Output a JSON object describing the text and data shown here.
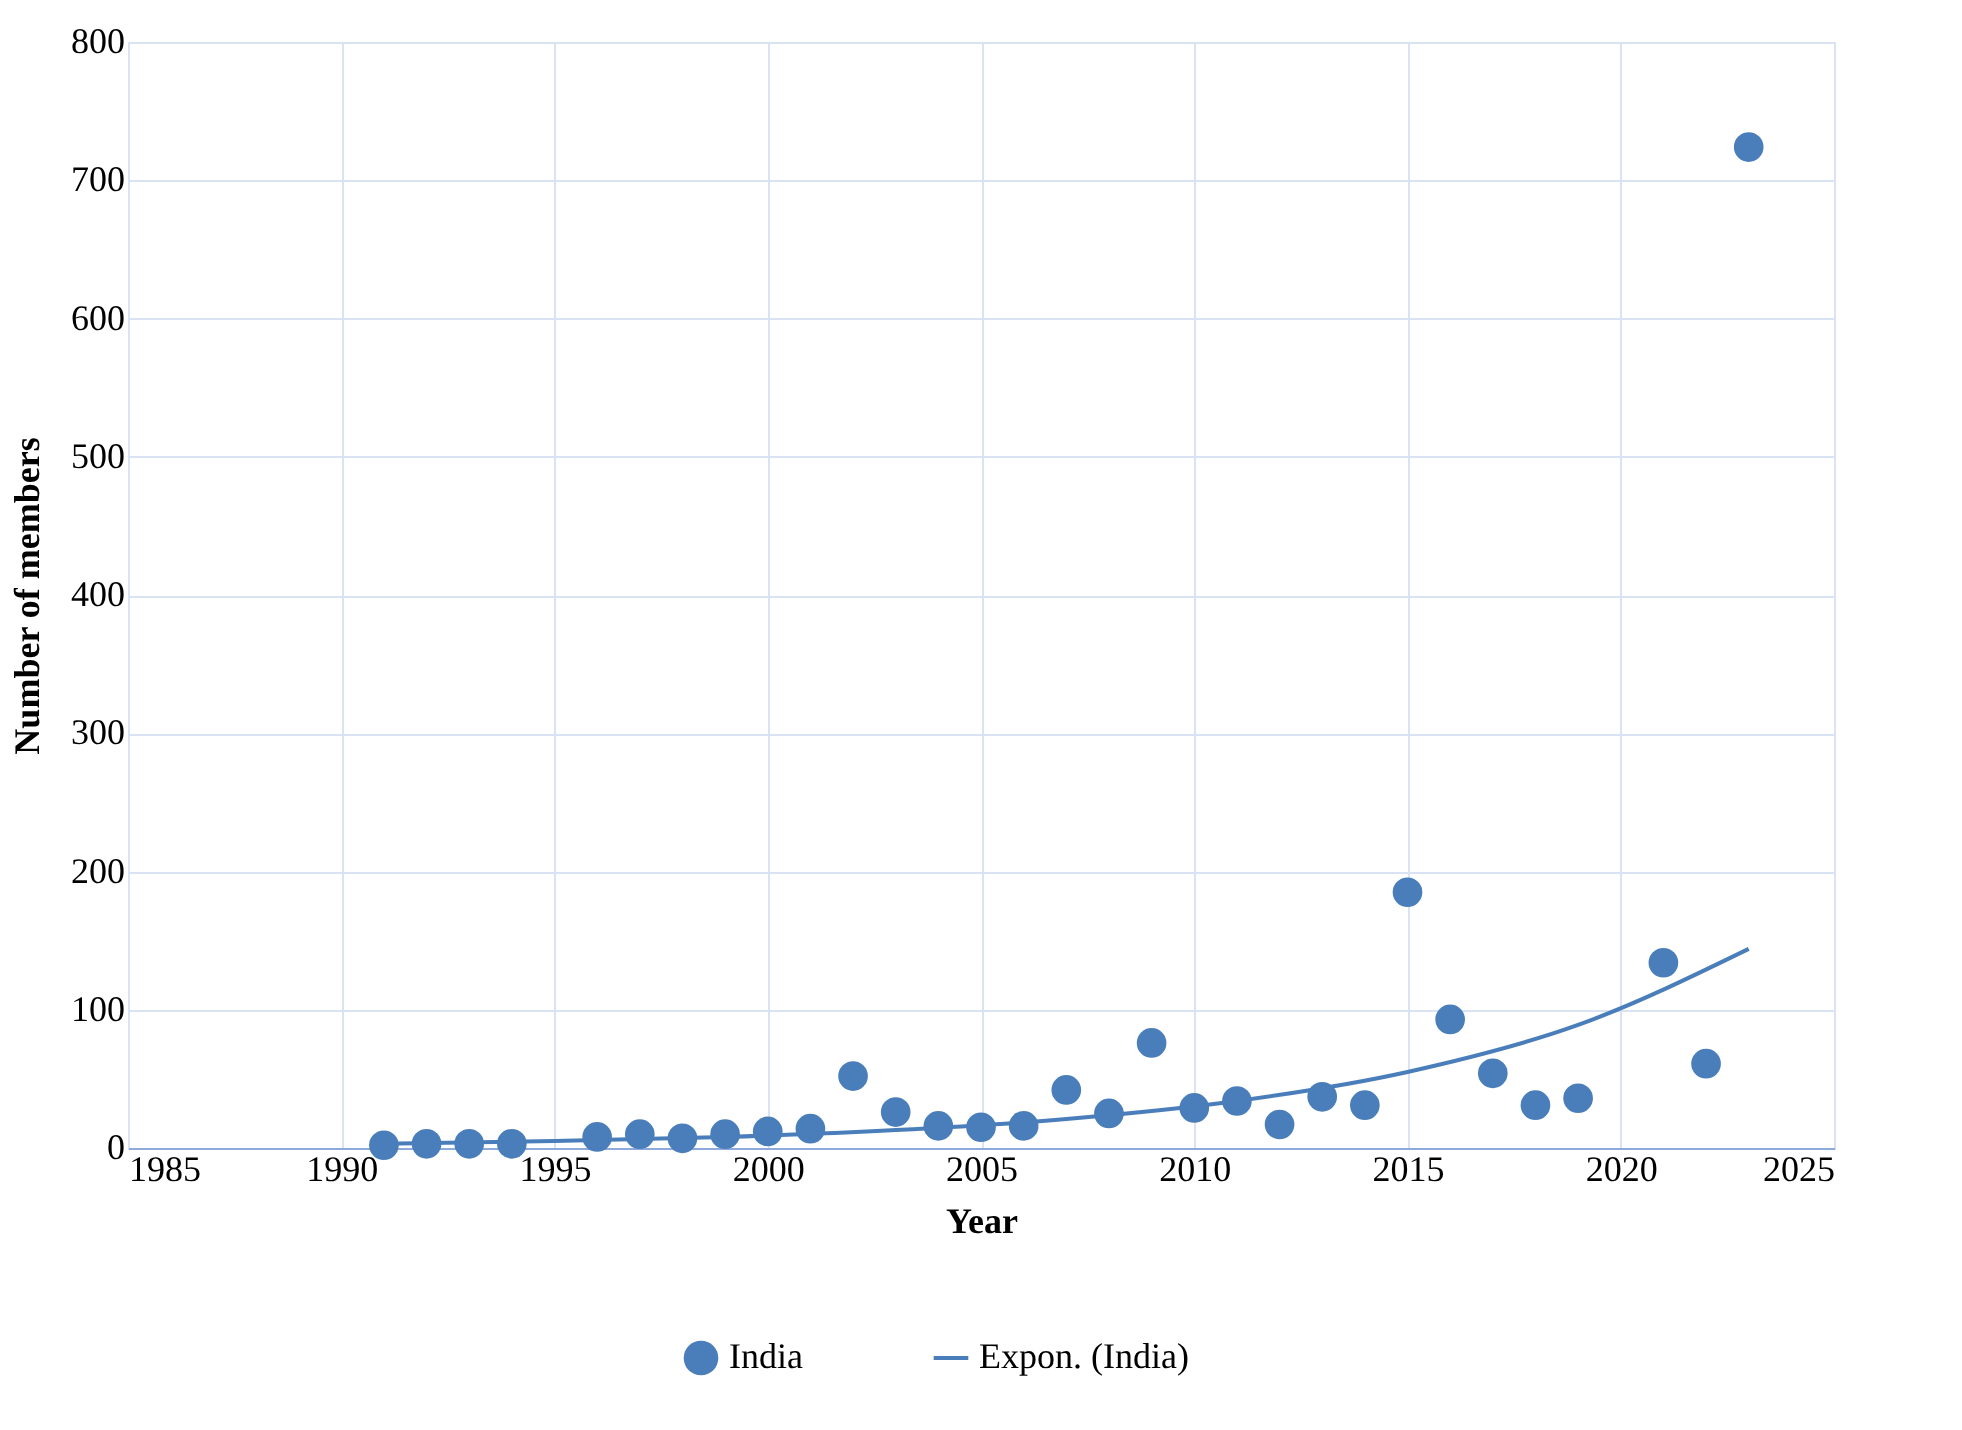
{
  "chart_data": {
    "type": "scatter",
    "xlabel": "Year",
    "ylabel": "Number of members",
    "xlim": [
      1985,
      2025
    ],
    "xticks": [
      1985,
      1990,
      1995,
      2000,
      2005,
      2010,
      2015,
      2020,
      2025
    ],
    "ylim": [
      0,
      800
    ],
    "yticks": [
      0,
      100,
      200,
      300,
      400,
      500,
      600,
      700,
      800
    ],
    "grid": true,
    "legend": "bottom",
    "marker": "circle",
    "series": [
      {
        "name": "India",
        "color": "#4a7ebb",
        "x": [
          1991,
          1992,
          1993,
          1994,
          1996,
          1997,
          1998,
          1999,
          2000,
          2001,
          2002,
          2003,
          2004,
          2005,
          2006,
          2007,
          2008,
          2009,
          2010,
          2011,
          2012,
          2013,
          2014,
          2015,
          2016,
          2017,
          2018,
          2019,
          2021,
          2022,
          2023
        ],
        "values": [
          2,
          3,
          3,
          3,
          8,
          10,
          7,
          10,
          12,
          14,
          52,
          26,
          16,
          15,
          16,
          42,
          25,
          76,
          29,
          34,
          17,
          37,
          31,
          185,
          93,
          54,
          31,
          36,
          134,
          61,
          724
        ]
      },
      {
        "name": "Expon. (India)",
        "color": "#4a7ebb",
        "type": "line",
        "marker": "none",
        "line_style": "solid",
        "x": [
          1991,
          1995,
          1999,
          2003,
          2007,
          2011,
          2015,
          2019,
          2023
        ],
        "values": [
          3,
          5,
          8,
          13,
          21,
          34,
          55,
          89,
          144
        ]
      }
    ]
  }
}
